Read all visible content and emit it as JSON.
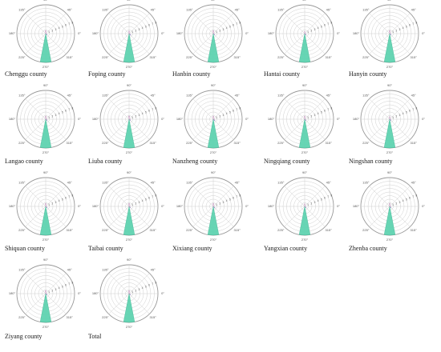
{
  "angle_labels": [
    "0°",
    "45°",
    "90°",
    "135°",
    "180°",
    "225°",
    "270°",
    "315°"
  ],
  "radial_tick_labels": [
    "1",
    "2",
    "3",
    "4",
    "5",
    "6",
    "7",
    "8"
  ],
  "colors": {
    "ring": "#cfcfcf",
    "outer_ring": "#999999",
    "wedge_main": "#5fd3b0",
    "wedge_edge": "#3fb392",
    "small_wedge": "#9b93c9",
    "small_wedge_2": "#c9a0c4"
  },
  "chart_data": [
    {
      "type": "polar-bar",
      "caption": "Chenggu county",
      "theta_unit": "degrees",
      "r_max": 8,
      "bars": [
        {
          "theta": 270,
          "r": 8
        },
        {
          "theta": 90,
          "r": 0.8
        },
        {
          "theta": 315,
          "r": 0.5
        },
        {
          "theta": 0,
          "r": 0.3
        }
      ]
    },
    {
      "type": "polar-bar",
      "caption": "Foping county",
      "theta_unit": "degrees",
      "r_max": 8,
      "bars": [
        {
          "theta": 270,
          "r": 8
        },
        {
          "theta": 90,
          "r": 0.7
        },
        {
          "theta": 315,
          "r": 0.6
        },
        {
          "theta": 0,
          "r": 0.3
        }
      ]
    },
    {
      "type": "polar-bar",
      "caption": "Hanbin county",
      "theta_unit": "degrees",
      "r_max": 8,
      "bars": [
        {
          "theta": 270,
          "r": 8
        },
        {
          "theta": 90,
          "r": 0.8
        },
        {
          "theta": 315,
          "r": 0.5
        },
        {
          "theta": 0,
          "r": 0.3
        }
      ]
    },
    {
      "type": "polar-bar",
      "caption": "Hantai county",
      "theta_unit": "degrees",
      "r_max": 8,
      "bars": [
        {
          "theta": 270,
          "r": 8
        },
        {
          "theta": 90,
          "r": 0.6
        },
        {
          "theta": 315,
          "r": 0.5
        },
        {
          "theta": 0,
          "r": 0.3
        }
      ]
    },
    {
      "type": "polar-bar",
      "caption": "Hanyin county",
      "theta_unit": "degrees",
      "r_max": 8,
      "bars": [
        {
          "theta": 270,
          "r": 8
        },
        {
          "theta": 90,
          "r": 0.8
        },
        {
          "theta": 315,
          "r": 0.5
        },
        {
          "theta": 0,
          "r": 0.3
        }
      ]
    },
    {
      "type": "polar-bar",
      "caption": "Langao county",
      "theta_unit": "degrees",
      "r_max": 8,
      "bars": [
        {
          "theta": 270,
          "r": 8
        },
        {
          "theta": 90,
          "r": 0.8
        },
        {
          "theta": 315,
          "r": 0.5
        },
        {
          "theta": 0,
          "r": 0.4
        }
      ]
    },
    {
      "type": "polar-bar",
      "caption": "Liuba county",
      "theta_unit": "degrees",
      "r_max": 8,
      "bars": [
        {
          "theta": 270,
          "r": 8
        },
        {
          "theta": 90,
          "r": 0.9
        },
        {
          "theta": 315,
          "r": 0.5
        },
        {
          "theta": 0,
          "r": 0.4
        }
      ]
    },
    {
      "type": "polar-bar",
      "caption": "Nanzheng county",
      "theta_unit": "degrees",
      "r_max": 8,
      "bars": [
        {
          "theta": 270,
          "r": 8
        },
        {
          "theta": 90,
          "r": 0.8
        },
        {
          "theta": 315,
          "r": 0.6
        },
        {
          "theta": 0,
          "r": 0.4
        }
      ]
    },
    {
      "type": "polar-bar",
      "caption": "Ningqiang county",
      "theta_unit": "degrees",
      "r_max": 8,
      "bars": [
        {
          "theta": 270,
          "r": 8
        },
        {
          "theta": 90,
          "r": 0.8
        },
        {
          "theta": 315,
          "r": 0.5
        },
        {
          "theta": 0,
          "r": 0.3
        }
      ]
    },
    {
      "type": "polar-bar",
      "caption": "Ningshan county",
      "theta_unit": "degrees",
      "r_max": 8,
      "bars": [
        {
          "theta": 270,
          "r": 8
        },
        {
          "theta": 90,
          "r": 0.7
        },
        {
          "theta": 315,
          "r": 0.5
        },
        {
          "theta": 0,
          "r": 0.3
        }
      ]
    },
    {
      "type": "polar-bar",
      "caption": "Shiquan county",
      "theta_unit": "degrees",
      "r_max": 8,
      "bars": [
        {
          "theta": 270,
          "r": 8
        },
        {
          "theta": 90,
          "r": 0.8
        },
        {
          "theta": 315,
          "r": 0.5
        },
        {
          "theta": 0,
          "r": 0.3
        }
      ]
    },
    {
      "type": "polar-bar",
      "caption": "Taibai county",
      "theta_unit": "degrees",
      "r_max": 8,
      "bars": [
        {
          "theta": 270,
          "r": 8
        },
        {
          "theta": 90,
          "r": 0.8
        },
        {
          "theta": 315,
          "r": 0.5
        },
        {
          "theta": 0,
          "r": 0.3
        }
      ]
    },
    {
      "type": "polar-bar",
      "caption": "Xixiang county",
      "theta_unit": "degrees",
      "r_max": 8,
      "bars": [
        {
          "theta": 270,
          "r": 8
        },
        {
          "theta": 90,
          "r": 0.8
        },
        {
          "theta": 315,
          "r": 0.6
        },
        {
          "theta": 0,
          "r": 0.3
        }
      ]
    },
    {
      "type": "polar-bar",
      "caption": "Yangxian county",
      "theta_unit": "degrees",
      "r_max": 8,
      "bars": [
        {
          "theta": 270,
          "r": 8
        },
        {
          "theta": 90,
          "r": 0.7
        },
        {
          "theta": 315,
          "r": 0.5
        },
        {
          "theta": 0,
          "r": 0.3
        }
      ]
    },
    {
      "type": "polar-bar",
      "caption": "Zhenba county",
      "theta_unit": "degrees",
      "r_max": 8,
      "bars": [
        {
          "theta": 270,
          "r": 8
        },
        {
          "theta": 90,
          "r": 0.8
        },
        {
          "theta": 315,
          "r": 0.5
        },
        {
          "theta": 0,
          "r": 0.3
        }
      ]
    },
    {
      "type": "polar-bar",
      "caption": "Ziyang county",
      "theta_unit": "degrees",
      "r_max": 8,
      "bars": [
        {
          "theta": 270,
          "r": 8
        },
        {
          "theta": 90,
          "r": 0.8
        },
        {
          "theta": 315,
          "r": 0.5
        },
        {
          "theta": 0,
          "r": 0.3
        }
      ]
    },
    {
      "type": "polar-bar",
      "caption": "Total",
      "theta_unit": "degrees",
      "r_max": 8,
      "bars": [
        {
          "theta": 270,
          "r": 8
        },
        {
          "theta": 90,
          "r": 0.8
        },
        {
          "theta": 315,
          "r": 0.5
        },
        {
          "theta": 0,
          "r": 0.3
        }
      ]
    }
  ]
}
